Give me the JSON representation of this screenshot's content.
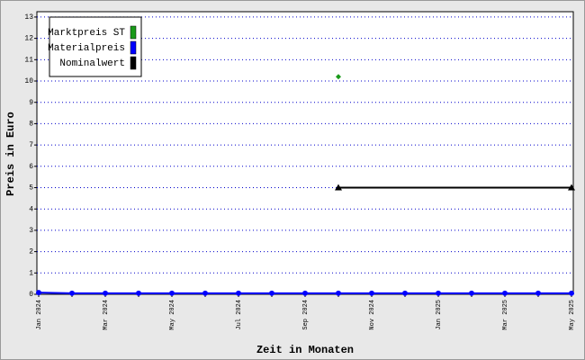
{
  "chart_data": {
    "type": "line",
    "x_label": "Zeit in Monaten",
    "y_label": "Preis in Euro",
    "categories": [
      "Jan 2024",
      null,
      "Mar 2024",
      null,
      "May 2024",
      null,
      "Jul 2024",
      null,
      "Sep 2024",
      null,
      "Nov 2024",
      null,
      "Jan 2025",
      null,
      "Mar 2025",
      null,
      "May 2025"
    ],
    "series": [
      {
        "name": "Marktpreis ST",
        "color": "#1a9a1a",
        "marker": "diamond",
        "values": [
          null,
          null,
          null,
          null,
          null,
          null,
          null,
          null,
          null,
          10.2,
          null,
          null,
          null,
          null,
          null,
          null,
          null
        ]
      },
      {
        "name": "Materialpreis",
        "color": "#0000ff",
        "marker": "circle",
        "values": [
          0.08,
          0.05,
          0.05,
          0.05,
          0.05,
          0.05,
          0.05,
          0.05,
          0.05,
          0.05,
          0.05,
          0.05,
          0.05,
          0.05,
          0.05,
          0.05,
          0.05
        ]
      },
      {
        "name": "Nominalwert",
        "color": "#000000",
        "marker": "triangle",
        "values": [
          null,
          null,
          null,
          null,
          null,
          null,
          null,
          null,
          null,
          5,
          5,
          5,
          5,
          5,
          5,
          5,
          5
        ]
      }
    ],
    "ylim": [
      0,
      13.25
    ],
    "yticks": [
      0,
      1,
      2,
      3,
      4,
      5,
      6,
      7,
      8,
      9,
      10,
      11,
      12,
      13
    ],
    "grid": true,
    "grid_color": "#0000cc",
    "legend": "top-left"
  }
}
